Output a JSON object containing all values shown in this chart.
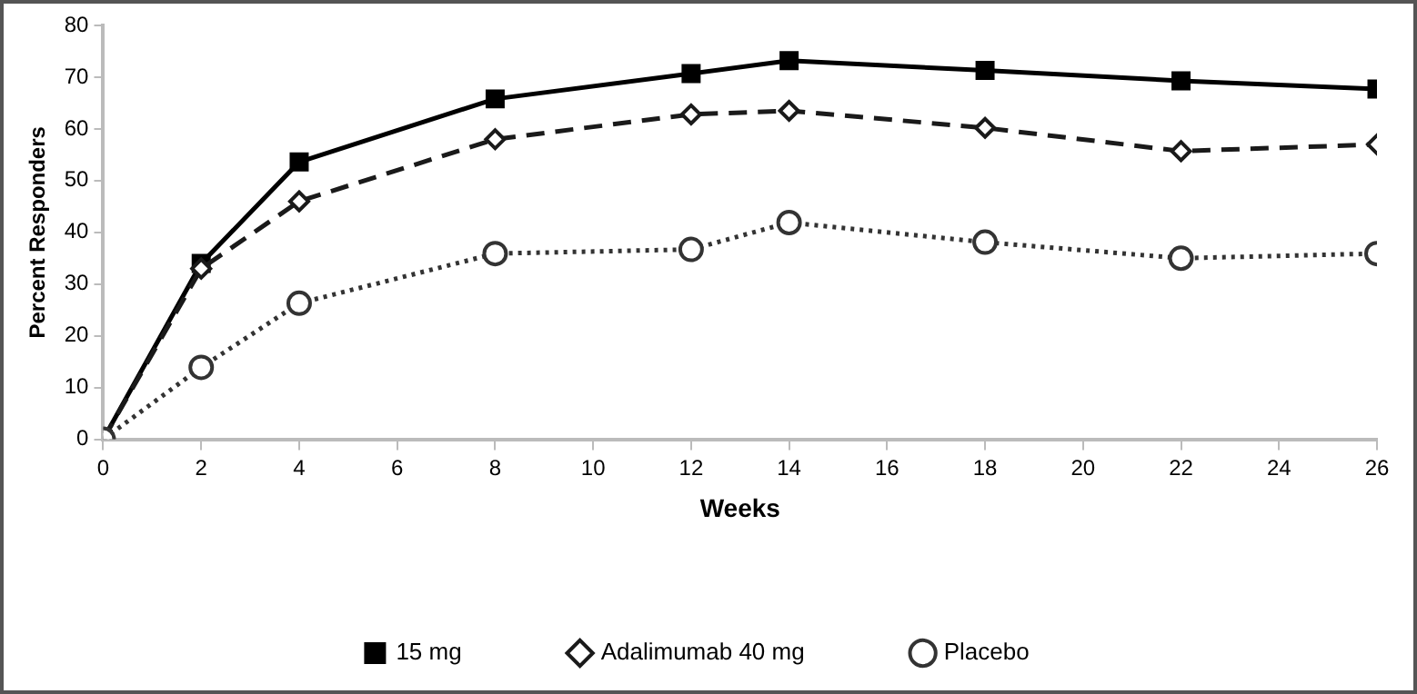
{
  "chart_data": {
    "type": "line",
    "xlabel": "Weeks",
    "ylabel": "Percent Responders",
    "x": [
      0,
      2,
      4,
      8,
      12,
      14,
      18,
      22,
      26
    ],
    "series": [
      {
        "name": "15 mg",
        "color": "#000000",
        "marker": "square",
        "line_style": "solid",
        "values": [
          0,
          34,
          53.6,
          65.8,
          70.7,
          73.2,
          71.3,
          69.3,
          67.7
        ]
      },
      {
        "name": "Adalimumab 40 mg",
        "color": "#1a1a1a",
        "marker": "diamond",
        "line_style": "dashed",
        "values": [
          0,
          33,
          46,
          58,
          62.8,
          63.5,
          60.2,
          55.7,
          57
        ]
      },
      {
        "name": "Placebo",
        "color": "#333333",
        "marker": "circle",
        "line_style": "dotted",
        "values": [
          0,
          13.9,
          26.3,
          35.9,
          36.7,
          41.9,
          38.1,
          35,
          35.9
        ]
      }
    ],
    "xlim": [
      0,
      26
    ],
    "xticks": [
      0,
      2,
      4,
      6,
      8,
      10,
      12,
      14,
      16,
      18,
      20,
      22,
      24,
      26
    ],
    "ylim": [
      0,
      80
    ],
    "yticks": [
      0,
      10,
      20,
      30,
      40,
      50,
      60,
      70,
      80
    ],
    "grid": false,
    "legend": "bottom"
  }
}
